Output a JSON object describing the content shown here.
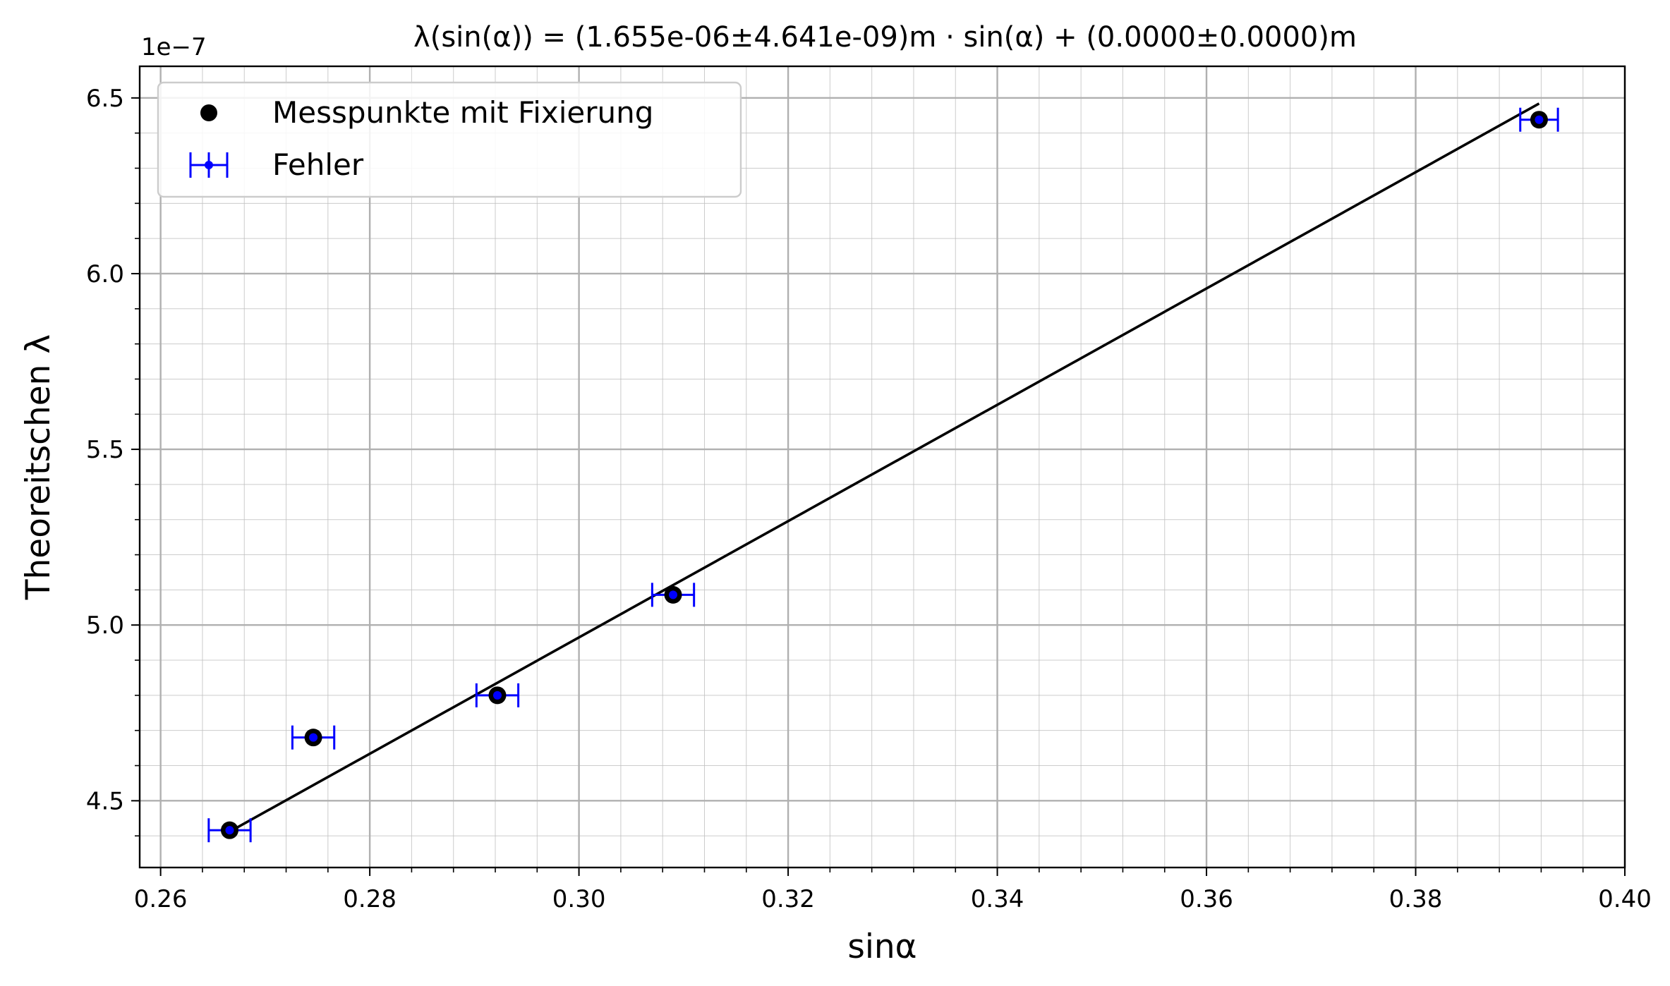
{
  "chart_data": {
    "type": "scatter",
    "title": "λ(sin(α)) = (1.655e-06±4.641e-09)m · sin(α) + (0.0000±0.0000)m",
    "xlabel": "sinα",
    "ylabel": "Theoreitschen λ",
    "y_offset_label": "1e−7",
    "xlim": [
      0.258,
      0.4
    ],
    "ylim": [
      4.31,
      6.59
    ],
    "y_scale_factor": 1e-07,
    "x_ticks": [
      0.26,
      0.28,
      0.3,
      0.32,
      0.34,
      0.36,
      0.38,
      0.4
    ],
    "x_tick_labels": [
      "0.26",
      "0.28",
      "0.30",
      "0.32",
      "0.34",
      "0.36",
      "0.38",
      "0.40"
    ],
    "y_ticks": [
      4.5,
      5.0,
      5.5,
      6.0,
      6.5
    ],
    "y_tick_labels": [
      "4.5",
      "5.0",
      "5.5",
      "6.0",
      "6.5"
    ],
    "grid": true,
    "minor_grid": true,
    "legend_position": "upper-left",
    "series": [
      {
        "name": "Messpunkte mit Fixierung",
        "kind": "points",
        "color": "#000000",
        "x": [
          0.2666,
          0.2746,
          0.2922,
          0.309,
          0.3918
        ],
        "y": [
          4.416,
          4.68,
          4.8,
          5.086,
          6.438
        ]
      },
      {
        "name": "Fehler",
        "kind": "errorbar",
        "color": "#0000ff",
        "x": [
          0.2666,
          0.2746,
          0.2922,
          0.309,
          0.3918
        ],
        "y": [
          4.416,
          4.68,
          4.8,
          5.086,
          6.438
        ],
        "xerr": [
          0.002,
          0.002,
          0.002,
          0.002,
          0.0018
        ]
      },
      {
        "name": "",
        "kind": "fit-line",
        "color": "#000000",
        "x": [
          0.2666,
          0.3918
        ],
        "y": [
          4.412,
          6.484
        ]
      }
    ]
  }
}
